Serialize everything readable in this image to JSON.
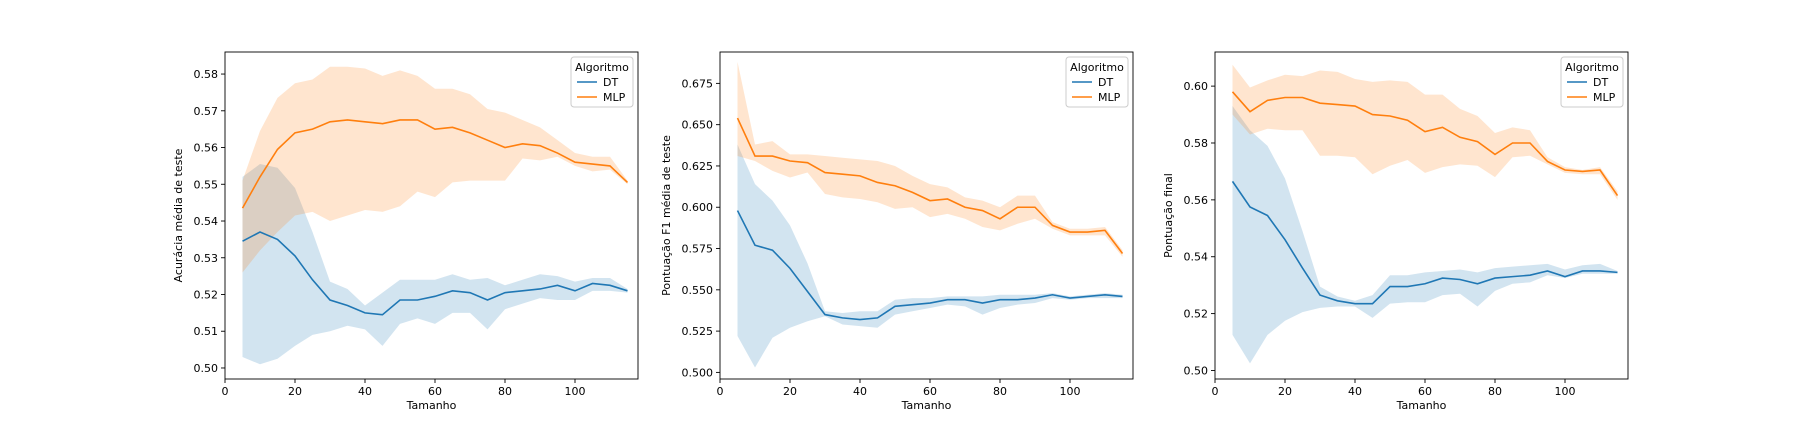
{
  "colors": {
    "DT": "#1f77b4",
    "MLP": "#ff7f0e"
  },
  "legend_title": "Algoritmo",
  "chart_data": [
    {
      "type": "line",
      "title": "",
      "xlabel": "Tamanho",
      "ylabel": "Acurácia média de teste",
      "xlim": [
        0,
        118
      ],
      "ylim": [
        0.497,
        0.586
      ],
      "xticks": [
        0,
        20,
        40,
        60,
        80,
        100
      ],
      "yticks": [
        0.5,
        0.51,
        0.52,
        0.53,
        0.54,
        0.55,
        0.56,
        0.57,
        0.58
      ],
      "ytick_decimals": 2,
      "grid": false,
      "legend": "top-right",
      "x": [
        5,
        10,
        15,
        20,
        25,
        30,
        35,
        40,
        45,
        50,
        55,
        60,
        65,
        70,
        75,
        80,
        85,
        90,
        95,
        100,
        105,
        110,
        115
      ],
      "series": [
        {
          "name": "DT",
          "values": [
            0.5345,
            0.537,
            0.535,
            0.5305,
            0.524,
            0.5185,
            0.517,
            0.515,
            0.5145,
            0.5185,
            0.5185,
            0.5195,
            0.521,
            0.5205,
            0.5185,
            0.5205,
            0.521,
            0.5215,
            0.5225,
            0.521,
            0.523,
            0.5225,
            0.521
          ],
          "lower": [
            0.503,
            0.501,
            0.5025,
            0.506,
            0.509,
            0.51,
            0.5115,
            0.5105,
            0.506,
            0.512,
            0.5135,
            0.512,
            0.515,
            0.515,
            0.5105,
            0.516,
            0.5175,
            0.519,
            0.5185,
            0.5185,
            0.521,
            0.521,
            0.5205
          ],
          "upper": [
            0.552,
            0.5555,
            0.5545,
            0.549,
            0.537,
            0.5235,
            0.5215,
            0.517,
            0.5205,
            0.524,
            0.524,
            0.524,
            0.5255,
            0.524,
            0.5245,
            0.5225,
            0.524,
            0.5255,
            0.525,
            0.5235,
            0.5245,
            0.5245,
            0.5215
          ]
        },
        {
          "name": "MLP",
          "values": [
            0.5435,
            0.552,
            0.5595,
            0.564,
            0.565,
            0.567,
            0.5675,
            0.567,
            0.5665,
            0.5675,
            0.5675,
            0.565,
            0.5655,
            0.564,
            0.562,
            0.56,
            0.561,
            0.5605,
            0.5585,
            0.556,
            0.5555,
            0.555,
            0.5505
          ],
          "lower": [
            0.526,
            0.532,
            0.537,
            0.5415,
            0.5425,
            0.54,
            0.5415,
            0.543,
            0.5425,
            0.544,
            0.548,
            0.5465,
            0.5505,
            0.551,
            0.551,
            0.551,
            0.557,
            0.5565,
            0.5575,
            0.555,
            0.5535,
            0.554,
            0.55
          ],
          "upper": [
            0.551,
            0.5645,
            0.5735,
            0.5775,
            0.5785,
            0.582,
            0.582,
            0.5815,
            0.5795,
            0.581,
            0.5795,
            0.576,
            0.576,
            0.5745,
            0.5705,
            0.5695,
            0.5675,
            0.5655,
            0.562,
            0.5585,
            0.5575,
            0.5575,
            0.551
          ]
        }
      ]
    },
    {
      "type": "line",
      "title": "",
      "xlabel": "Tamanho",
      "ylabel": "Pontuação F1 média de teste",
      "xlim": [
        0,
        118
      ],
      "ylim": [
        0.496,
        0.694
      ],
      "xticks": [
        0,
        20,
        40,
        60,
        80,
        100
      ],
      "yticks": [
        0.5,
        0.525,
        0.55,
        0.575,
        0.6,
        0.625,
        0.65,
        0.675
      ],
      "ytick_decimals": 3,
      "grid": false,
      "legend": "top-right",
      "x": [
        5,
        10,
        15,
        20,
        25,
        30,
        35,
        40,
        45,
        50,
        55,
        60,
        65,
        70,
        75,
        80,
        85,
        90,
        95,
        100,
        105,
        110,
        115
      ],
      "series": [
        {
          "name": "DT",
          "values": [
            0.598,
            0.577,
            0.574,
            0.563,
            0.549,
            0.535,
            0.533,
            0.532,
            0.533,
            0.54,
            0.541,
            0.542,
            0.544,
            0.544,
            0.542,
            0.544,
            0.544,
            0.545,
            0.547,
            0.545,
            0.546,
            0.547,
            0.546
          ],
          "lower": [
            0.522,
            0.503,
            0.521,
            0.527,
            0.531,
            0.534,
            0.529,
            0.528,
            0.527,
            0.535,
            0.537,
            0.539,
            0.541,
            0.54,
            0.535,
            0.539,
            0.541,
            0.542,
            0.545,
            0.544,
            0.545,
            0.545,
            0.545
          ],
          "upper": [
            0.638,
            0.614,
            0.604,
            0.589,
            0.566,
            0.537,
            0.536,
            0.537,
            0.537,
            0.544,
            0.545,
            0.545,
            0.546,
            0.546,
            0.546,
            0.547,
            0.547,
            0.547,
            0.548,
            0.546,
            0.547,
            0.548,
            0.547
          ]
        },
        {
          "name": "MLP",
          "values": [
            0.654,
            0.631,
            0.631,
            0.628,
            0.627,
            0.621,
            0.62,
            0.619,
            0.615,
            0.613,
            0.609,
            0.604,
            0.605,
            0.6,
            0.598,
            0.593,
            0.6,
            0.6,
            0.589,
            0.585,
            0.585,
            0.586,
            0.572
          ],
          "lower": [
            0.631,
            0.628,
            0.622,
            0.618,
            0.621,
            0.608,
            0.606,
            0.605,
            0.603,
            0.599,
            0.6,
            0.594,
            0.596,
            0.593,
            0.588,
            0.586,
            0.59,
            0.593,
            0.587,
            0.583,
            0.583,
            0.583,
            0.57
          ],
          "upper": [
            0.688,
            0.638,
            0.64,
            0.632,
            0.632,
            0.631,
            0.63,
            0.629,
            0.628,
            0.625,
            0.619,
            0.614,
            0.612,
            0.606,
            0.604,
            0.6,
            0.607,
            0.607,
            0.591,
            0.587,
            0.587,
            0.588,
            0.574
          ]
        }
      ]
    },
    {
      "type": "line",
      "title": "",
      "xlabel": "Tamanho",
      "ylabel": "Pontuação final",
      "xlim": [
        0,
        118
      ],
      "ylim": [
        0.497,
        0.612
      ],
      "xticks": [
        0,
        20,
        40,
        60,
        80,
        100
      ],
      "yticks": [
        0.5,
        0.52,
        0.54,
        0.56,
        0.58,
        0.6
      ],
      "ytick_decimals": 2,
      "grid": false,
      "legend": "top-right",
      "x": [
        5,
        10,
        15,
        20,
        25,
        30,
        35,
        40,
        45,
        50,
        55,
        60,
        65,
        70,
        75,
        80,
        85,
        90,
        95,
        100,
        105,
        110,
        115
      ],
      "series": [
        {
          "name": "DT",
          "values": [
            0.5665,
            0.5575,
            0.5545,
            0.546,
            0.536,
            0.5265,
            0.5245,
            0.5235,
            0.5235,
            0.5295,
            0.5295,
            0.5305,
            0.5325,
            0.532,
            0.5305,
            0.5325,
            0.533,
            0.5335,
            0.535,
            0.533,
            0.535,
            0.535,
            0.5345
          ],
          "lower": [
            0.5125,
            0.5025,
            0.5125,
            0.5175,
            0.5205,
            0.522,
            0.5225,
            0.5225,
            0.5185,
            0.5235,
            0.524,
            0.524,
            0.5265,
            0.527,
            0.5225,
            0.528,
            0.5305,
            0.531,
            0.5335,
            0.5325,
            0.534,
            0.534,
            0.534
          ],
          "upper": [
            0.593,
            0.5845,
            0.579,
            0.5675,
            0.549,
            0.5295,
            0.526,
            0.5245,
            0.5265,
            0.5335,
            0.5335,
            0.5345,
            0.535,
            0.5355,
            0.5345,
            0.536,
            0.5365,
            0.537,
            0.5375,
            0.5355,
            0.537,
            0.5375,
            0.535
          ]
        },
        {
          "name": "MLP",
          "values": [
            0.598,
            0.591,
            0.595,
            0.596,
            0.596,
            0.594,
            0.5935,
            0.593,
            0.59,
            0.5895,
            0.588,
            0.584,
            0.5855,
            0.582,
            0.5805,
            0.576,
            0.58,
            0.58,
            0.5735,
            0.5705,
            0.57,
            0.5705,
            0.5615
          ],
          "lower": [
            0.59,
            0.583,
            0.585,
            0.5845,
            0.5845,
            0.5755,
            0.5755,
            0.575,
            0.569,
            0.572,
            0.574,
            0.5695,
            0.5715,
            0.5725,
            0.572,
            0.568,
            0.575,
            0.5755,
            0.5725,
            0.5695,
            0.569,
            0.569,
            0.56
          ],
          "upper": [
            0.6075,
            0.5995,
            0.602,
            0.604,
            0.6035,
            0.6055,
            0.605,
            0.6025,
            0.6015,
            0.602,
            0.6015,
            0.597,
            0.597,
            0.592,
            0.5895,
            0.5835,
            0.5855,
            0.5845,
            0.575,
            0.5715,
            0.5705,
            0.5715,
            0.563
          ]
        }
      ]
    }
  ]
}
